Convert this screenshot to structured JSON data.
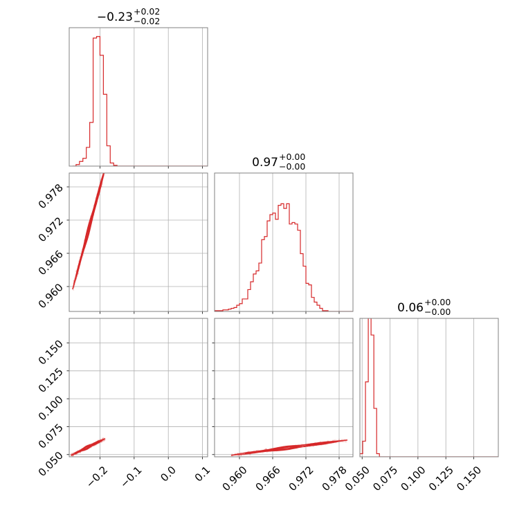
{
  "figure": {
    "accent_color": "#d62728",
    "grid_color": "#b0b0b0",
    "axes_edge_color": "#808080"
  },
  "chart_data": [
    {
      "type": "histogram",
      "panel": "diag-0",
      "title": {
        "median": "−0.23",
        "plus": "+0.02",
        "minus": "−0.02"
      },
      "xlim": [
        -0.29,
        0.115
      ],
      "x_ticks": [
        -0.2,
        -0.1,
        0.0,
        0.1
      ],
      "bin_edges_start": -0.28,
      "bin_width": 0.01,
      "density": [
        0,
        0.01,
        0.03,
        0.05,
        0.12,
        0.28,
        0.82,
        0.83,
        0.71,
        0.46,
        0.13,
        0.02,
        0.005,
        0,
        0,
        0,
        0,
        0,
        0,
        0,
        0,
        0,
        0,
        0,
        0,
        0,
        0,
        0,
        0,
        0,
        0,
        0,
        0,
        0,
        0,
        0,
        0,
        0,
        0,
        0
      ]
    },
    {
      "type": "histogram",
      "panel": "diag-1",
      "title": {
        "median": "0.97",
        "plus": "+0.00",
        "minus": "−0.00"
      },
      "xlim": [
        0.9555,
        0.9805
      ],
      "x_ticks": [
        0.96,
        0.966,
        0.972,
        0.978
      ],
      "x_tick_labels": [
        "0.960",
        "0.966",
        "0.972",
        "0.978"
      ],
      "bin_edges_start": 0.9555,
      "bin_width": 0.0005,
      "density": [
        0.005,
        0.005,
        0.005,
        0.01,
        0.01,
        0.015,
        0.02,
        0.025,
        0.04,
        0.05,
        0.08,
        0.08,
        0.14,
        0.19,
        0.24,
        0.26,
        0.31,
        0.46,
        0.48,
        0.58,
        0.62,
        0.63,
        0.59,
        0.68,
        0.69,
        0.66,
        0.69,
        0.56,
        0.57,
        0.56,
        0.52,
        0.37,
        0.29,
        0.18,
        0.17,
        0.09,
        0.06,
        0.04,
        0.02,
        0.005,
        0.005,
        0,
        0,
        0,
        0,
        0,
        0,
        0,
        0,
        0
      ]
    },
    {
      "type": "histogram",
      "panel": "diag-2",
      "title": {
        "median": "0.06",
        "plus": "+0.00",
        "minus": "−0.00"
      },
      "xlim": [
        0.048,
        0.172
      ],
      "x_ticks": [
        0.05,
        0.075,
        0.1,
        0.125,
        0.15
      ],
      "x_tick_labels": [
        "0.050",
        "0.075",
        "0.100",
        "0.125",
        "0.150"
      ],
      "bin_edges_start": 0.048,
      "bin_width": 0.0025,
      "density": [
        0.02,
        0.1,
        0.48,
        0.91,
        0.78,
        0.31,
        0.02,
        0,
        0,
        0,
        0,
        0,
        0,
        0,
        0,
        0,
        0,
        0,
        0,
        0,
        0,
        0,
        0,
        0,
        0,
        0,
        0,
        0,
        0,
        0,
        0,
        0,
        0,
        0,
        0,
        0,
        0,
        0,
        0,
        0,
        0,
        0,
        0,
        0,
        0,
        0,
        0,
        0,
        0,
        0
      ]
    },
    {
      "type": "contour",
      "panel": "pair-1-0",
      "xlim": [
        -0.29,
        0.115
      ],
      "ylim": [
        0.9555,
        0.9805
      ],
      "y_ticks": [
        0.96,
        0.966,
        0.972,
        0.978
      ],
      "y_tick_labels": [
        "0.960",
        "0.966",
        "0.972",
        "0.978"
      ],
      "trend": {
        "x0": -0.23,
        "y0": 0.971,
        "slope": 0.23
      },
      "spread": {
        "dx": [
          -0.05,
          0.05
        ],
        "dy": 0.0007
      }
    },
    {
      "type": "contour",
      "panel": "pair-2-0",
      "xlim": [
        -0.29,
        0.115
      ],
      "ylim": [
        0.048,
        0.172
      ],
      "y_ticks": [
        0.05,
        0.075,
        0.1,
        0.125,
        0.15
      ],
      "y_tick_labels": [
        "0.050",
        "0.075",
        "0.100",
        "0.125",
        "0.150"
      ],
      "x_tick_labels": [
        "−0.2",
        "−0.1",
        "0.0",
        "0.1"
      ],
      "trend": {
        "x0": -0.23,
        "y0": 0.0575,
        "slope": 0.15
      },
      "spread": {
        "dx": [
          -0.055,
          0.045
        ],
        "dy": 0.0012
      }
    },
    {
      "type": "contour",
      "panel": "pair-2-1",
      "xlim": [
        0.9555,
        0.9805
      ],
      "ylim": [
        0.048,
        0.172
      ],
      "trend": {
        "x0": 0.971,
        "y0": 0.0575,
        "slope": 0.65
      },
      "spread": {
        "dx": [
          -0.0125,
          0.0085
        ],
        "dy": 0.0012
      }
    }
  ]
}
